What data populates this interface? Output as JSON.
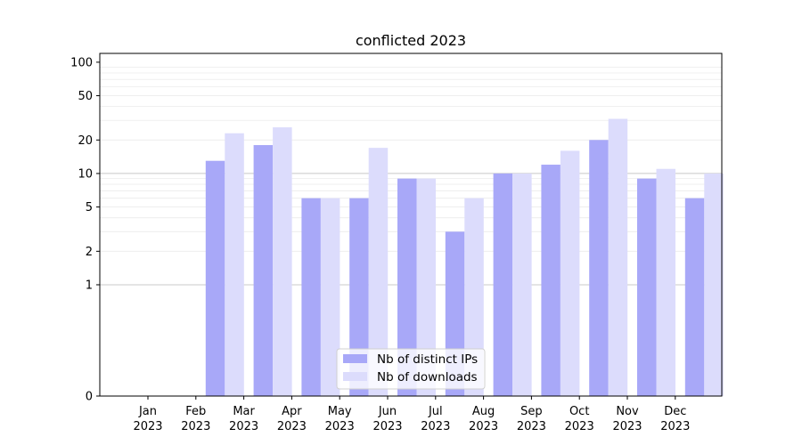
{
  "chart_data": {
    "type": "bar",
    "title": "conflicted 2023",
    "xlabel": "",
    "ylabel": "",
    "yscale": "symlog",
    "ylim": [
      0,
      120
    ],
    "yticks": [
      0,
      1,
      2,
      5,
      10,
      20,
      50,
      100
    ],
    "ytick_labels": [
      "0",
      "1",
      "2",
      "5",
      "10",
      "20",
      "50",
      "100"
    ],
    "grid": true,
    "legend_position": "bottom-center",
    "categories": [
      {
        "month": "Jan",
        "year": "2023"
      },
      {
        "month": "Feb",
        "year": "2023"
      },
      {
        "month": "Mar",
        "year": "2023"
      },
      {
        "month": "Apr",
        "year": "2023"
      },
      {
        "month": "May",
        "year": "2023"
      },
      {
        "month": "Jun",
        "year": "2023"
      },
      {
        "month": "Jul",
        "year": "2023"
      },
      {
        "month": "Aug",
        "year": "2023"
      },
      {
        "month": "Sep",
        "year": "2023"
      },
      {
        "month": "Oct",
        "year": "2023"
      },
      {
        "month": "Nov",
        "year": "2023"
      },
      {
        "month": "Dec",
        "year": "2023"
      }
    ],
    "series": [
      {
        "name": "Nb of distinct IPs",
        "color": "#a8a8f8",
        "values": [
          0,
          13,
          18,
          6,
          6,
          9,
          3,
          10,
          12,
          20,
          9,
          6
        ]
      },
      {
        "name": "Nb of downloads",
        "color": "#dcdcfc",
        "values": [
          0,
          23,
          26,
          6,
          17,
          9,
          6,
          10,
          16,
          31,
          11,
          10
        ]
      }
    ]
  }
}
